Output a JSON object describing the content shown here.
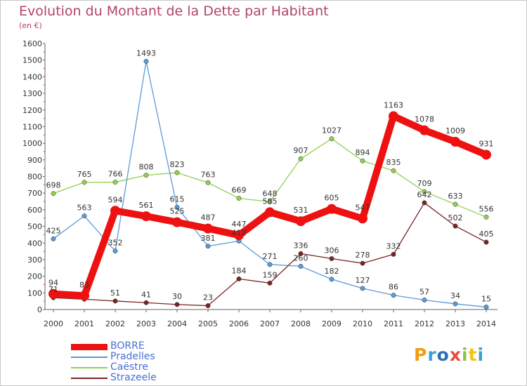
{
  "title": "Evolution du Montant de la Dette par Habitant",
  "unit": "(en €)",
  "logo": {
    "text": "Proxiti",
    "colors": [
      "#f39c12",
      "#3aa0d8",
      "#2c6fb8",
      "#e74c3c",
      "#8bc34a",
      "#f1c40f",
      "#3aa0d8"
    ]
  },
  "chart_data": {
    "type": "line",
    "title": "Evolution du Montant de la Dette par Habitant",
    "ylabel": "(en €)",
    "xlabel": "",
    "x": [
      "2000",
      "2001",
      "2002",
      "2003",
      "2004",
      "2005",
      "2006",
      "2007",
      "2008",
      "2009",
      "2010",
      "2011",
      "2012",
      "2013",
      "2014"
    ],
    "ylim": [
      0,
      1600
    ],
    "yticks": [
      0,
      100,
      200,
      300,
      400,
      500,
      600,
      700,
      800,
      900,
      1000,
      1100,
      1200,
      1300,
      1400,
      1500,
      1600
    ],
    "grid": false,
    "legend_position": "bottom-left",
    "series": [
      {
        "name": "BORRE",
        "color": "#ee1111",
        "values": [
          94,
          83,
          594,
          561,
          525,
          487,
          447,
          585,
          531,
          605,
          547,
          1163,
          1078,
          1009,
          931
        ],
        "labels": [
          "94",
          "83",
          "594",
          "561",
          "525",
          "487",
          "447",
          "585",
          "531",
          "605",
          "547",
          "1163",
          "1078",
          "1009",
          "931"
        ]
      },
      {
        "name": "Pradelles",
        "color": "#5b9bd5",
        "values": [
          425,
          563,
          352,
          1493,
          615,
          381,
          412,
          271,
          260,
          182,
          127,
          86,
          57,
          34,
          15
        ],
        "labels": [
          "425",
          "563",
          "352",
          "1493",
          "615",
          "381",
          "412",
          "271",
          "260",
          "182",
          "127",
          "86",
          "57",
          "34",
          "15"
        ]
      },
      {
        "name": "Caëstre",
        "color": "#92d050",
        "values": [
          698,
          765,
          766,
          808,
          823,
          763,
          669,
          648,
          907,
          1027,
          894,
          835,
          709,
          633,
          556
        ],
        "labels": [
          "698",
          "765",
          "766",
          "808",
          "823",
          "763",
          "669",
          "648",
          "907",
          "1027",
          "894",
          "835",
          "709",
          "633",
          "556"
        ]
      },
      {
        "name": "Strazeele",
        "color": "#7b2424",
        "values": [
          71,
          62,
          51,
          41,
          30,
          23,
          184,
          159,
          336,
          306,
          278,
          332,
          642,
          502,
          405
        ],
        "labels": [
          "71",
          "",
          "51",
          "41",
          "30",
          "23",
          "184",
          "159",
          "336",
          "306",
          "278",
          "332",
          "642",
          "502",
          "405"
        ]
      }
    ]
  }
}
